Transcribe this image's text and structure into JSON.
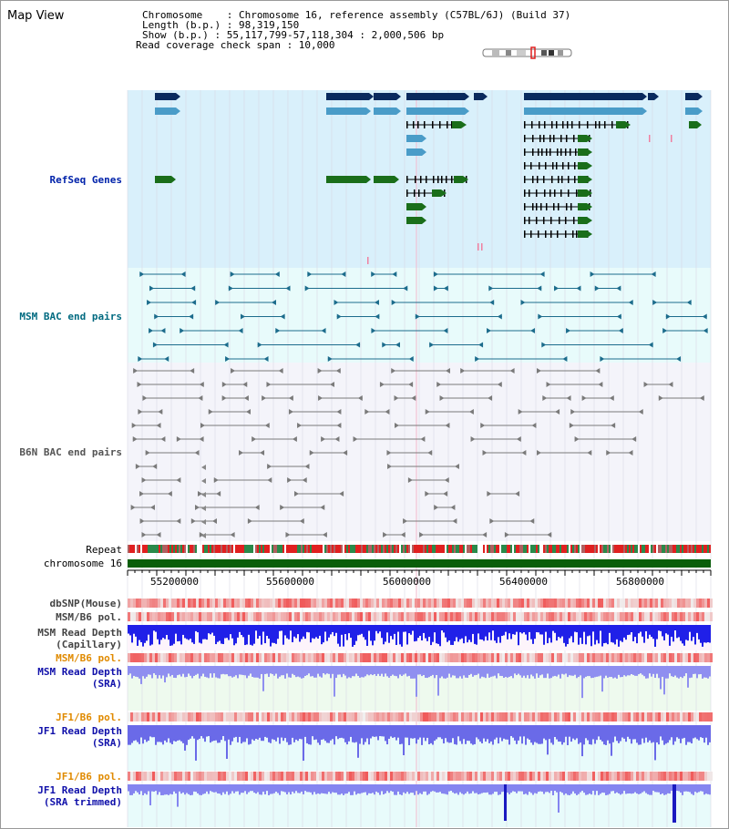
{
  "title": "Map View",
  "header": {
    "chromosome_label": "Chromosome    : Chromosome 16, reference assembly (C57BL/6J) (Build 37)",
    "length_label": "Length (b.p.) : 98,319,150",
    "show_label": "Show (b.p.) : 55,117,799-57,118,304 : 2,000,506 bp",
    "coverage_label": "Read coverage check span : 10,000"
  },
  "tracks": {
    "refseq": "RefSeq Genes",
    "msm_bac": "MSM BAC end pairs",
    "b6n_bac": "B6N BAC end pairs",
    "repeat": "Repeat",
    "chromosome": "chromosome 16",
    "dbsnp": "dbSNP(Mouse)",
    "msm_b6_pol_1": "MSM/B6 pol.",
    "msm_read_depth_cap_1": "MSM Read Depth",
    "msm_read_depth_cap_2": "(Capillary)",
    "msm_b6_pol_2": "MSM/B6 pol.",
    "msm_read_depth_sra_1": "MSM Read Depth",
    "msm_read_depth_sra_2": "(SRA)",
    "jf1_b6_pol_1": "JF1/B6 pol.",
    "jf1_read_depth_1": "JF1 Read Depth",
    "jf1_read_depth_2": "(SRA)",
    "jf1_b6_pol_2": "JF1/B6 pol.",
    "jf1_read_depth_trim_1": "JF1 Read Depth",
    "jf1_read_depth_trim_2": "(SRA trimmed)"
  },
  "axis": {
    "ticks": [
      "55200000",
      "55600000",
      "56000000",
      "56400000",
      "56800000"
    ]
  },
  "colors": {
    "refseq_bg": "#d9f0fb",
    "msm_bg": "#e8fbfb",
    "b6n_bg": "#f4f4fa",
    "gene_dark": "#0a2a5e",
    "gene_mid": "#4a9cc8",
    "gene_green": "#1a6e1a",
    "msm_line": "#1c6c8c",
    "b6n_line": "#7a7a7a",
    "msm_label": "#006a80",
    "refseq_label": "#0022aa",
    "gray_label": "#444444",
    "orange_label": "#e08a00",
    "blue_label": "#1010aa",
    "chrom_bar": "#0a5e0a"
  }
}
